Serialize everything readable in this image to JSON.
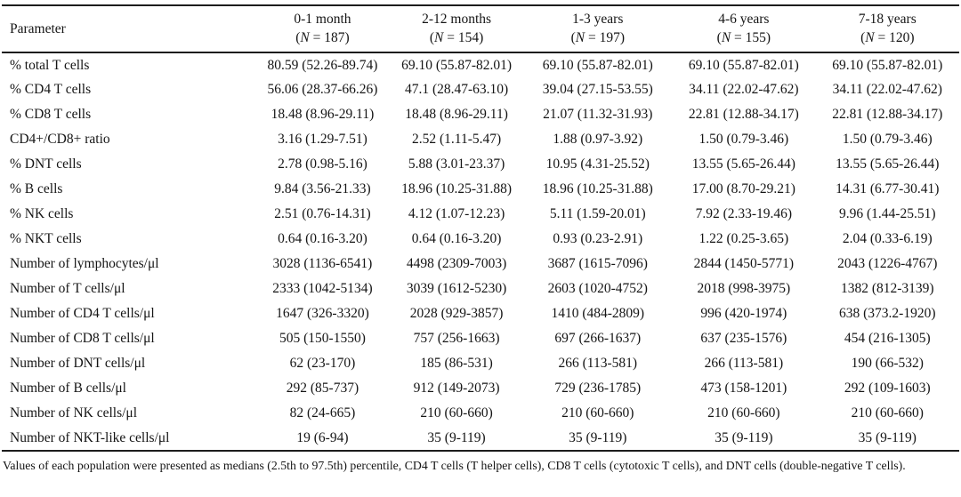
{
  "table": {
    "header": {
      "parameter_label": "Parameter",
      "age_groups": [
        {
          "range": "0-1 month",
          "n": "(N = 187)"
        },
        {
          "range": "2-12 months",
          "n": "(N = 154)"
        },
        {
          "range": "1-3 years",
          "n": "(N = 197)"
        },
        {
          "range": "4-6 years",
          "n": "(N = 155)"
        },
        {
          "range": "7-18 years",
          "n": "(N = 120)"
        }
      ]
    },
    "rows": [
      {
        "parameter": "% total T cells",
        "values": [
          "80.59 (52.26-89.74)",
          "69.10 (55.87-82.01)",
          "69.10 (55.87-82.01)",
          "69.10 (55.87-82.01)",
          "69.10 (55.87-82.01)"
        ]
      },
      {
        "parameter": "% CD4 T cells",
        "values": [
          "56.06 (28.37-66.26)",
          "47.1 (28.47-63.10)",
          "39.04 (27.15-53.55)",
          "34.11 (22.02-47.62)",
          "34.11 (22.02-47.62)"
        ]
      },
      {
        "parameter": "% CD8 T cells",
        "values": [
          "18.48 (8.96-29.11)",
          "18.48 (8.96-29.11)",
          "21.07 (11.32-31.93)",
          "22.81 (12.88-34.17)",
          "22.81 (12.88-34.17)"
        ]
      },
      {
        "parameter": "CD4+/CD8+ ratio",
        "values": [
          "3.16 (1.29-7.51)",
          "2.52 (1.11-5.47)",
          "1.88 (0.97-3.92)",
          "1.50 (0.79-3.46)",
          "1.50 (0.79-3.46)"
        ]
      },
      {
        "parameter": "% DNT cells",
        "values": [
          "2.78 (0.98-5.16)",
          "5.88 (3.01-23.37)",
          "10.95 (4.31-25.52)",
          "13.55 (5.65-26.44)",
          "13.55 (5.65-26.44)"
        ]
      },
      {
        "parameter": "% B cells",
        "values": [
          "9.84 (3.56-21.33)",
          "18.96 (10.25-31.88)",
          "18.96 (10.25-31.88)",
          "17.00 (8.70-29.21)",
          "14.31 (6.77-30.41)"
        ]
      },
      {
        "parameter": "% NK cells",
        "values": [
          "2.51 (0.76-14.31)",
          "4.12 (1.07-12.23)",
          "5.11 (1.59-20.01)",
          "7.92 (2.33-19.46)",
          "9.96 (1.44-25.51)"
        ]
      },
      {
        "parameter": "% NKT cells",
        "values": [
          "0.64 (0.16-3.20)",
          "0.64 (0.16-3.20)",
          "0.93 (0.23-2.91)",
          "1.22 (0.25-3.65)",
          "2.04 (0.33-6.19)"
        ]
      },
      {
        "parameter": "Number of lymphocytes/μl",
        "values": [
          "3028 (1136-6541)",
          "4498 (2309-7003)",
          "3687 (1615-7096)",
          "2844 (1450-5771)",
          "2043 (1226-4767)"
        ]
      },
      {
        "parameter": "Number of T cells/μl",
        "values": [
          "2333 (1042-5134)",
          "3039 (1612-5230)",
          "2603 (1020-4752)",
          "2018 (998-3975)",
          "1382 (812-3139)"
        ]
      },
      {
        "parameter": "Number of CD4 T cells/μl",
        "values": [
          "1647 (326-3320)",
          "2028 (929-3857)",
          "1410 (484-2809)",
          "996 (420-1974)",
          "638 (373.2-1920)"
        ]
      },
      {
        "parameter": "Number of CD8 T cells/μl",
        "values": [
          "505 (150-1550)",
          "757 (256-1663)",
          "697 (266-1637)",
          "637 (235-1576)",
          "454 (216-1305)"
        ]
      },
      {
        "parameter": "Number of DNT cells/μl",
        "values": [
          "62 (23-170)",
          "185 (86-531)",
          "266 (113-581)",
          "266 (113-581)",
          "190 (66-532)"
        ]
      },
      {
        "parameter": "Number of B cells/μl",
        "values": [
          "292 (85-737)",
          "912 (149-2073)",
          "729 (236-1785)",
          "473 (158-1201)",
          "292 (109-1603)"
        ]
      },
      {
        "parameter": "Number of NK cells/μl",
        "values": [
          "82 (24-665)",
          "210 (60-660)",
          "210 (60-660)",
          "210 (60-660)",
          "210 (60-660)"
        ]
      },
      {
        "parameter": "Number of NKT-like cells/μl",
        "values": [
          "19 (6-94)",
          "35 (9-119)",
          "35 (9-119)",
          "35 (9-119)",
          "35 (9-119)"
        ]
      }
    ],
    "footnote": "Values of each population were presented as medians (2.5th to 97.5th) percentile, CD4 T cells (T helper cells), CD8 T cells (cytotoxic T cells), and DNT cells (double-negative T cells)."
  }
}
